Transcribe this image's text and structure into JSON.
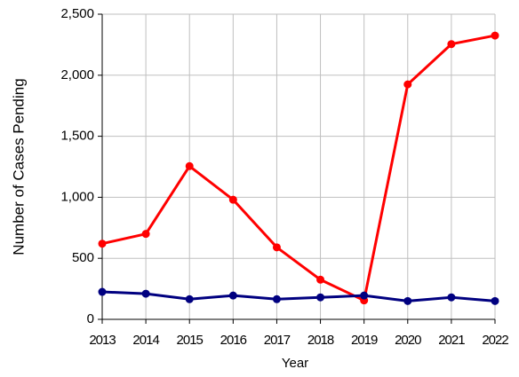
{
  "chart_data": {
    "type": "line",
    "x_label": "Year",
    "y_label": "Number of Cases Pending",
    "x": [
      2013,
      2014,
      2015,
      2016,
      2017,
      2018,
      2019,
      2020,
      2021,
      2022
    ],
    "series": [
      {
        "color": "#ff0000",
        "values": [
          620,
          700,
          1255,
          980,
          590,
          325,
          155,
          1925,
          2255,
          2325
        ]
      },
      {
        "color": "#000080",
        "values": [
          225,
          210,
          165,
          195,
          165,
          180,
          195,
          150,
          180,
          150
        ]
      }
    ],
    "xlim": [
      2013,
      2022
    ],
    "xticks": [
      2013,
      2014,
      2015,
      2016,
      2017,
      2018,
      2019,
      2020,
      2021,
      2022
    ],
    "ylim": [
      0,
      2500
    ],
    "yticks": [
      0,
      500,
      {
        "value": 1000,
        "label": "1,000"
      },
      {
        "value": 1500,
        "label": "1,500"
      },
      {
        "value": 2000,
        "label": "2,000"
      },
      {
        "value": 2500,
        "label": "2,500"
      }
    ],
    "grid": true
  }
}
